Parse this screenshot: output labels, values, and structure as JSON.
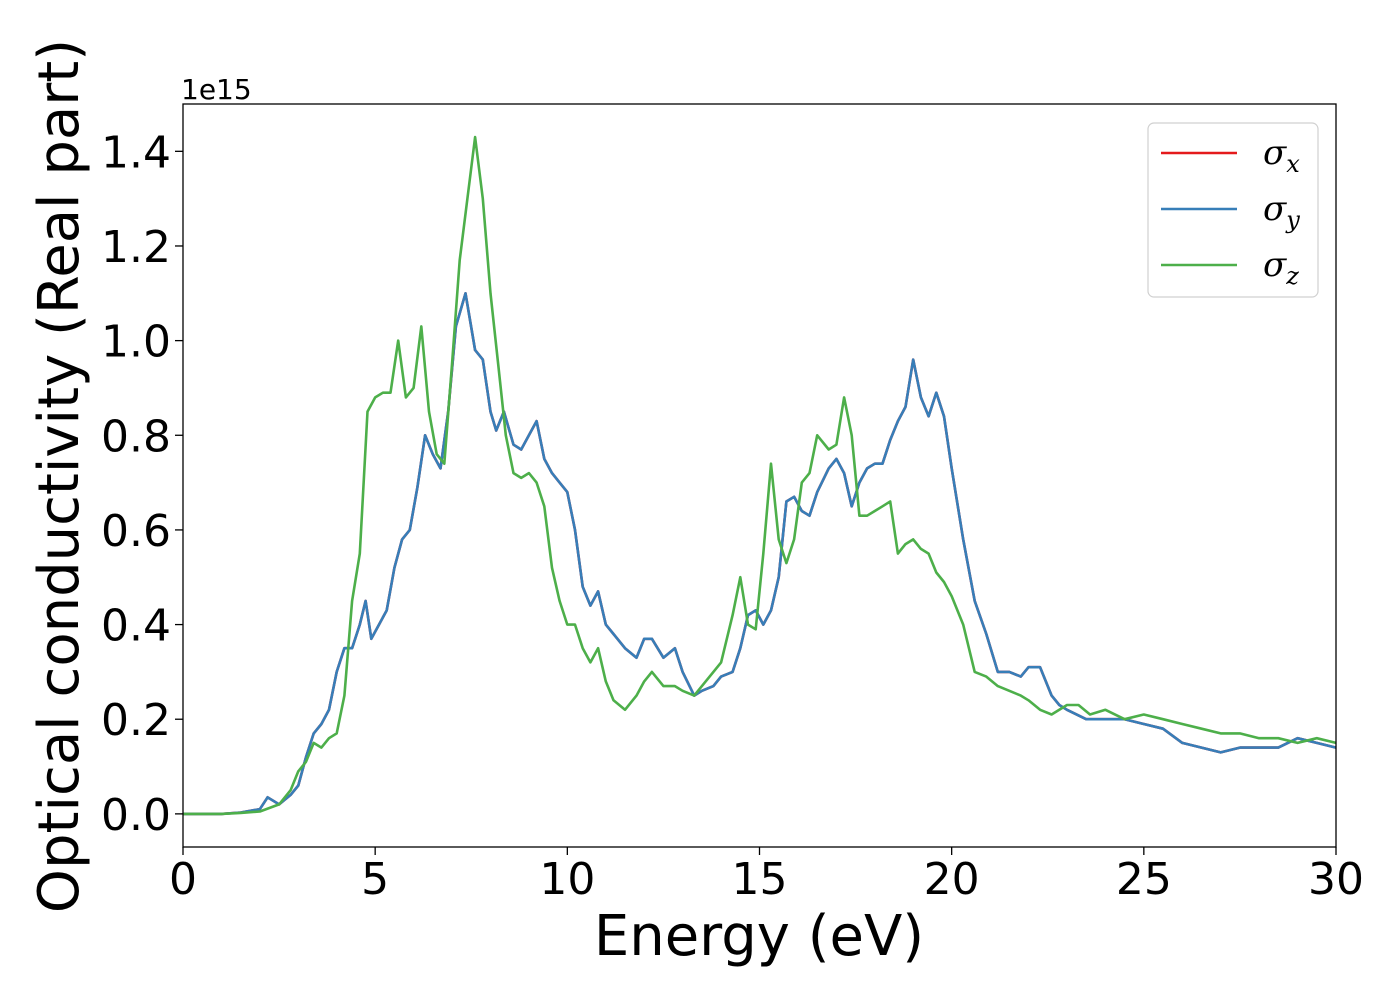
{
  "chart_data": {
    "type": "line",
    "title": "",
    "xlabel": "Energy (eV)",
    "ylabel": "Optical conductivity (Real part)",
    "y_offset_label": "1e15",
    "xlim": [
      0,
      30
    ],
    "ylim": [
      -0.07,
      1.5
    ],
    "xticks": [
      0,
      5,
      10,
      15,
      20,
      25,
      30
    ],
    "xtick_labels": [
      "0",
      "5",
      "10",
      "15",
      "20",
      "25",
      "30"
    ],
    "yticks": [
      0.0,
      0.2,
      0.4,
      0.6,
      0.8,
      1.0,
      1.2,
      1.4
    ],
    "ytick_labels": [
      "0.0",
      "0.2",
      "0.4",
      "0.6",
      "0.8",
      "1.0",
      "1.2",
      "1.4"
    ],
    "grid": false,
    "legend_position": "top-right",
    "series": [
      {
        "name": "σx",
        "symbol": "σ",
        "subscript": "x",
        "color": "#e41a1c",
        "x": [
          0,
          1,
          1.5,
          2,
          2.2,
          2.5,
          2.8,
          3.0,
          3.2,
          3.4,
          3.6,
          3.8,
          4.0,
          4.2,
          4.4,
          4.6,
          4.75,
          4.9,
          5.1,
          5.3,
          5.5,
          5.7,
          5.9,
          6.1,
          6.3,
          6.5,
          6.7,
          6.9,
          7.1,
          7.35,
          7.6,
          7.8,
          8.0,
          8.15,
          8.35,
          8.6,
          8.8,
          9.0,
          9.2,
          9.4,
          9.6,
          9.8,
          10.0,
          10.2,
          10.4,
          10.6,
          10.8,
          11.0,
          11.2,
          11.5,
          11.8,
          12.0,
          12.2,
          12.5,
          12.8,
          13.0,
          13.3,
          13.5,
          13.8,
          14.0,
          14.3,
          14.5,
          14.7,
          14.9,
          15.1,
          15.3,
          15.5,
          15.7,
          15.9,
          16.1,
          16.3,
          16.5,
          16.8,
          17.0,
          17.2,
          17.4,
          17.6,
          17.8,
          18.0,
          18.2,
          18.4,
          18.6,
          18.8,
          19.0,
          19.2,
          19.4,
          19.6,
          19.8,
          20.0,
          20.3,
          20.6,
          20.9,
          21.2,
          21.5,
          21.8,
          22.0,
          22.3,
          22.6,
          22.8,
          23.0,
          23.5,
          24.0,
          24.5,
          25.0,
          25.5,
          26.0,
          26.5,
          27.0,
          27.5,
          28.0,
          28.5,
          29.0,
          29.5,
          30.0
        ],
        "y": [
          0.0,
          0.0,
          0.003,
          0.01,
          0.035,
          0.02,
          0.04,
          0.06,
          0.12,
          0.17,
          0.19,
          0.22,
          0.3,
          0.35,
          0.35,
          0.4,
          0.45,
          0.37,
          0.4,
          0.43,
          0.52,
          0.58,
          0.6,
          0.69,
          0.8,
          0.76,
          0.73,
          0.85,
          1.03,
          1.1,
          0.98,
          0.96,
          0.85,
          0.81,
          0.85,
          0.78,
          0.77,
          0.8,
          0.83,
          0.75,
          0.72,
          0.7,
          0.68,
          0.6,
          0.48,
          0.44,
          0.47,
          0.4,
          0.38,
          0.35,
          0.33,
          0.37,
          0.37,
          0.33,
          0.35,
          0.3,
          0.25,
          0.26,
          0.27,
          0.29,
          0.3,
          0.35,
          0.42,
          0.43,
          0.4,
          0.43,
          0.5,
          0.66,
          0.67,
          0.64,
          0.63,
          0.68,
          0.73,
          0.75,
          0.72,
          0.65,
          0.7,
          0.73,
          0.74,
          0.74,
          0.79,
          0.83,
          0.86,
          0.96,
          0.88,
          0.84,
          0.89,
          0.84,
          0.73,
          0.58,
          0.45,
          0.38,
          0.3,
          0.3,
          0.29,
          0.31,
          0.31,
          0.25,
          0.23,
          0.22,
          0.2,
          0.2,
          0.2,
          0.19,
          0.18,
          0.15,
          0.14,
          0.13,
          0.14,
          0.14,
          0.14,
          0.16,
          0.15,
          0.14
        ]
      },
      {
        "name": "σy",
        "symbol": "σ",
        "subscript": "y",
        "color": "#377eb8",
        "x": [
          0,
          1,
          1.5,
          2,
          2.2,
          2.5,
          2.8,
          3.0,
          3.2,
          3.4,
          3.6,
          3.8,
          4.0,
          4.2,
          4.4,
          4.6,
          4.75,
          4.9,
          5.1,
          5.3,
          5.5,
          5.7,
          5.9,
          6.1,
          6.3,
          6.5,
          6.7,
          6.9,
          7.1,
          7.35,
          7.6,
          7.8,
          8.0,
          8.15,
          8.35,
          8.6,
          8.8,
          9.0,
          9.2,
          9.4,
          9.6,
          9.8,
          10.0,
          10.2,
          10.4,
          10.6,
          10.8,
          11.0,
          11.2,
          11.5,
          11.8,
          12.0,
          12.2,
          12.5,
          12.8,
          13.0,
          13.3,
          13.5,
          13.8,
          14.0,
          14.3,
          14.5,
          14.7,
          14.9,
          15.1,
          15.3,
          15.5,
          15.7,
          15.9,
          16.1,
          16.3,
          16.5,
          16.8,
          17.0,
          17.2,
          17.4,
          17.6,
          17.8,
          18.0,
          18.2,
          18.4,
          18.6,
          18.8,
          19.0,
          19.2,
          19.4,
          19.6,
          19.8,
          20.0,
          20.3,
          20.6,
          20.9,
          21.2,
          21.5,
          21.8,
          22.0,
          22.3,
          22.6,
          22.8,
          23.0,
          23.5,
          24.0,
          24.5,
          25.0,
          25.5,
          26.0,
          26.5,
          27.0,
          27.5,
          28.0,
          28.5,
          29.0,
          29.5,
          30.0
        ],
        "y": [
          0.0,
          0.0,
          0.003,
          0.01,
          0.035,
          0.02,
          0.04,
          0.06,
          0.12,
          0.17,
          0.19,
          0.22,
          0.3,
          0.35,
          0.35,
          0.4,
          0.45,
          0.37,
          0.4,
          0.43,
          0.52,
          0.58,
          0.6,
          0.69,
          0.8,
          0.76,
          0.73,
          0.85,
          1.03,
          1.1,
          0.98,
          0.96,
          0.85,
          0.81,
          0.85,
          0.78,
          0.77,
          0.8,
          0.83,
          0.75,
          0.72,
          0.7,
          0.68,
          0.6,
          0.48,
          0.44,
          0.47,
          0.4,
          0.38,
          0.35,
          0.33,
          0.37,
          0.37,
          0.33,
          0.35,
          0.3,
          0.25,
          0.26,
          0.27,
          0.29,
          0.3,
          0.35,
          0.42,
          0.43,
          0.4,
          0.43,
          0.5,
          0.66,
          0.67,
          0.64,
          0.63,
          0.68,
          0.73,
          0.75,
          0.72,
          0.65,
          0.7,
          0.73,
          0.74,
          0.74,
          0.79,
          0.83,
          0.86,
          0.96,
          0.88,
          0.84,
          0.89,
          0.84,
          0.73,
          0.58,
          0.45,
          0.38,
          0.3,
          0.3,
          0.29,
          0.31,
          0.31,
          0.25,
          0.23,
          0.22,
          0.2,
          0.2,
          0.2,
          0.19,
          0.18,
          0.15,
          0.14,
          0.13,
          0.14,
          0.14,
          0.14,
          0.16,
          0.15,
          0.14
        ]
      },
      {
        "name": "σz",
        "symbol": "σ",
        "subscript": "z",
        "color": "#4daf4a",
        "x": [
          0,
          1,
          1.5,
          2,
          2.5,
          2.8,
          3.0,
          3.2,
          3.4,
          3.6,
          3.8,
          4.0,
          4.2,
          4.4,
          4.6,
          4.8,
          5.0,
          5.2,
          5.4,
          5.6,
          5.8,
          6.0,
          6.2,
          6.4,
          6.6,
          6.8,
          7.0,
          7.2,
          7.4,
          7.6,
          7.8,
          8.0,
          8.2,
          8.4,
          8.6,
          8.8,
          9.0,
          9.2,
          9.4,
          9.6,
          9.8,
          10.0,
          10.2,
          10.4,
          10.6,
          10.8,
          11.0,
          11.2,
          11.5,
          11.8,
          12.0,
          12.2,
          12.5,
          12.8,
          13.0,
          13.3,
          13.5,
          13.8,
          14.0,
          14.3,
          14.5,
          14.7,
          14.9,
          15.1,
          15.3,
          15.5,
          15.7,
          15.9,
          16.1,
          16.3,
          16.5,
          16.8,
          17.0,
          17.2,
          17.4,
          17.6,
          17.8,
          18.0,
          18.2,
          18.4,
          18.6,
          18.8,
          19.0,
          19.2,
          19.4,
          19.6,
          19.8,
          20.0,
          20.3,
          20.6,
          20.9,
          21.2,
          21.5,
          21.8,
          22.0,
          22.3,
          22.6,
          23.0,
          23.3,
          23.6,
          24.0,
          24.5,
          25.0,
          25.5,
          26.0,
          26.5,
          27.0,
          27.5,
          28.0,
          28.5,
          29.0,
          29.5,
          30.0
        ],
        "y": [
          0.0,
          0.0,
          0.002,
          0.005,
          0.02,
          0.05,
          0.09,
          0.11,
          0.15,
          0.14,
          0.16,
          0.17,
          0.25,
          0.45,
          0.55,
          0.85,
          0.88,
          0.89,
          0.89,
          1.0,
          0.88,
          0.9,
          1.03,
          0.85,
          0.76,
          0.74,
          0.95,
          1.17,
          1.3,
          1.43,
          1.3,
          1.1,
          0.95,
          0.8,
          0.72,
          0.71,
          0.72,
          0.7,
          0.65,
          0.52,
          0.45,
          0.4,
          0.4,
          0.35,
          0.32,
          0.35,
          0.28,
          0.24,
          0.22,
          0.25,
          0.28,
          0.3,
          0.27,
          0.27,
          0.26,
          0.25,
          0.27,
          0.3,
          0.32,
          0.42,
          0.5,
          0.4,
          0.39,
          0.55,
          0.74,
          0.58,
          0.53,
          0.58,
          0.7,
          0.72,
          0.8,
          0.77,
          0.78,
          0.88,
          0.8,
          0.63,
          0.63,
          0.64,
          0.65,
          0.66,
          0.55,
          0.57,
          0.58,
          0.56,
          0.55,
          0.51,
          0.49,
          0.46,
          0.4,
          0.3,
          0.29,
          0.27,
          0.26,
          0.25,
          0.24,
          0.22,
          0.21,
          0.23,
          0.23,
          0.21,
          0.22,
          0.2,
          0.21,
          0.2,
          0.19,
          0.18,
          0.17,
          0.17,
          0.16,
          0.16,
          0.15,
          0.16,
          0.15
        ]
      }
    ]
  }
}
